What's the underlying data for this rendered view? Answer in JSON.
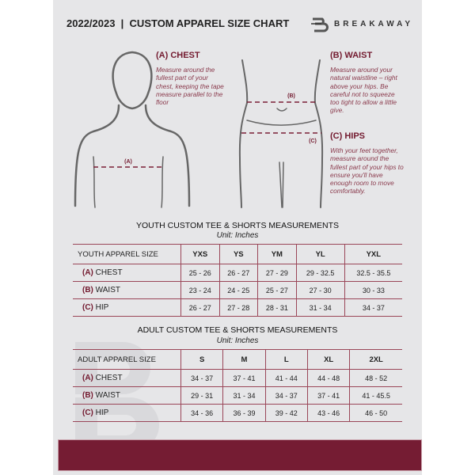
{
  "header": {
    "title": "2022/2023  |  CUSTOM APPAREL SIZE CHART",
    "brand": "BREAKAWAY",
    "logo_letter": "B"
  },
  "guides": [
    {
      "label": "(A) CHEST",
      "marker": "(A)",
      "text": "Measure around the fullest part of your chest, keeping the tape measure parallel to the floor"
    },
    {
      "label": "(B) WAIST",
      "marker": "(B)",
      "text": "Measure around your natural waistline – right above your hips. Be careful not to squeeze too tight to allow a little give."
    },
    {
      "label": "(C) HIPS",
      "marker": "(C)",
      "text": "With your feet together, measure around the fullest part of your hips to ensure you'll have enough room to move comfortably."
    }
  ],
  "colors": {
    "accent": "#751c33",
    "background": "#e6e6e8"
  },
  "youth": {
    "title": "YOUTH CUSTOM TEE & SHORTS MEASUREMENTS",
    "unit": "Unit: Inches",
    "header": "YOUTH APPAREL SIZE",
    "sizes": [
      "YXS",
      "YS",
      "YM",
      "YL",
      "YXL"
    ],
    "rows": [
      {
        "code": "(A)",
        "name": "CHEST",
        "values": [
          "25 - 26",
          "26 - 27",
          "27 - 29",
          "29 - 32.5",
          "32.5 - 35.5"
        ]
      },
      {
        "code": "(B)",
        "name": "WAIST",
        "values": [
          "23 - 24",
          "24 - 25",
          "25 - 27",
          "27 - 30",
          "30 - 33"
        ]
      },
      {
        "code": "(C)",
        "name": "HIP",
        "values": [
          "26 - 27",
          "27 - 28",
          "28 - 31",
          "31 - 34",
          "34 - 37"
        ]
      }
    ]
  },
  "adult": {
    "title": "ADULT CUSTOM TEE & SHORTS MEASUREMENTS",
    "unit": "Unit: Inches",
    "header": "ADULT APPAREL SIZE",
    "sizes": [
      "S",
      "M",
      "L",
      "XL",
      "2XL"
    ],
    "rows": [
      {
        "code": "(A)",
        "name": "CHEST",
        "values": [
          "34 - 37",
          "37 - 41",
          "41 - 44",
          "44 - 48",
          "48 - 52"
        ]
      },
      {
        "code": "(B)",
        "name": "WAIST",
        "values": [
          "29 - 31",
          "31 - 34",
          "34 - 37",
          "37 - 41",
          "41 - 45.5"
        ]
      },
      {
        "code": "(C)",
        "name": "HIP",
        "values": [
          "34 - 36",
          "36 - 39",
          "39 - 42",
          "43 - 46",
          "46 - 50"
        ]
      }
    ]
  }
}
